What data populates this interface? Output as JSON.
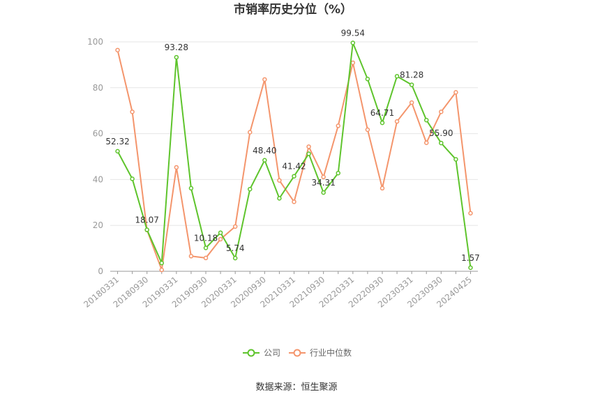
{
  "chart_data": {
    "type": "line",
    "title": "市销率历史分位（%）",
    "x": [
      "20180331",
      "20180630",
      "20180930",
      "20181231",
      "20190331",
      "20190630",
      "20190930",
      "20191231",
      "20200331",
      "20200630",
      "20200930",
      "20201231",
      "20210331",
      "20210630",
      "20210930",
      "20211231",
      "20220331",
      "20220630",
      "20220930",
      "20221231",
      "20230331",
      "20230630",
      "20230930",
      "20231231",
      "20240425"
    ],
    "x_tick_labels": [
      "20180331",
      "20180930",
      "20190331",
      "20190930",
      "20200331",
      "20200930",
      "20210331",
      "20210930",
      "20220331",
      "20220930",
      "20230331",
      "20230930",
      "20240425"
    ],
    "ylim": [
      0,
      100
    ],
    "y_ticks": [
      0,
      20,
      40,
      60,
      80,
      100
    ],
    "grid": true,
    "legend_position": "bottom",
    "series": [
      {
        "name": "公司",
        "color": "#5ec42c",
        "values": [
          52.32,
          40.3,
          18.07,
          3.6,
          93.28,
          36.2,
          10.18,
          16.8,
          5.74,
          35.8,
          48.4,
          31.8,
          41.42,
          51.2,
          34.31,
          42.8,
          99.54,
          83.8,
          64.71,
          85.0,
          81.28,
          65.9,
          55.9,
          48.8,
          1.57
        ],
        "labels": {
          "0": "52.32",
          "2": "18.07",
          "4": "93.28",
          "6": "10.18",
          "8": "5.74",
          "10": "48.40",
          "12": "41.42",
          "14": "34.31",
          "16": "99.54",
          "18": "64.71",
          "20": "81.28",
          "22": "55.90",
          "24": "1.57"
        }
      },
      {
        "name": "行业中位数",
        "color": "#f4956c",
        "values": [
          96.4,
          69.5,
          18.0,
          0.6,
          45.3,
          6.6,
          5.8,
          14.0,
          19.5,
          60.6,
          83.6,
          39.6,
          30.3,
          54.3,
          41.1,
          63.4,
          90.9,
          61.7,
          36.2,
          65.3,
          73.5,
          56.0,
          69.5,
          78.0,
          25.3
        ]
      }
    ]
  },
  "source_text": "数据来源：恒生聚源"
}
